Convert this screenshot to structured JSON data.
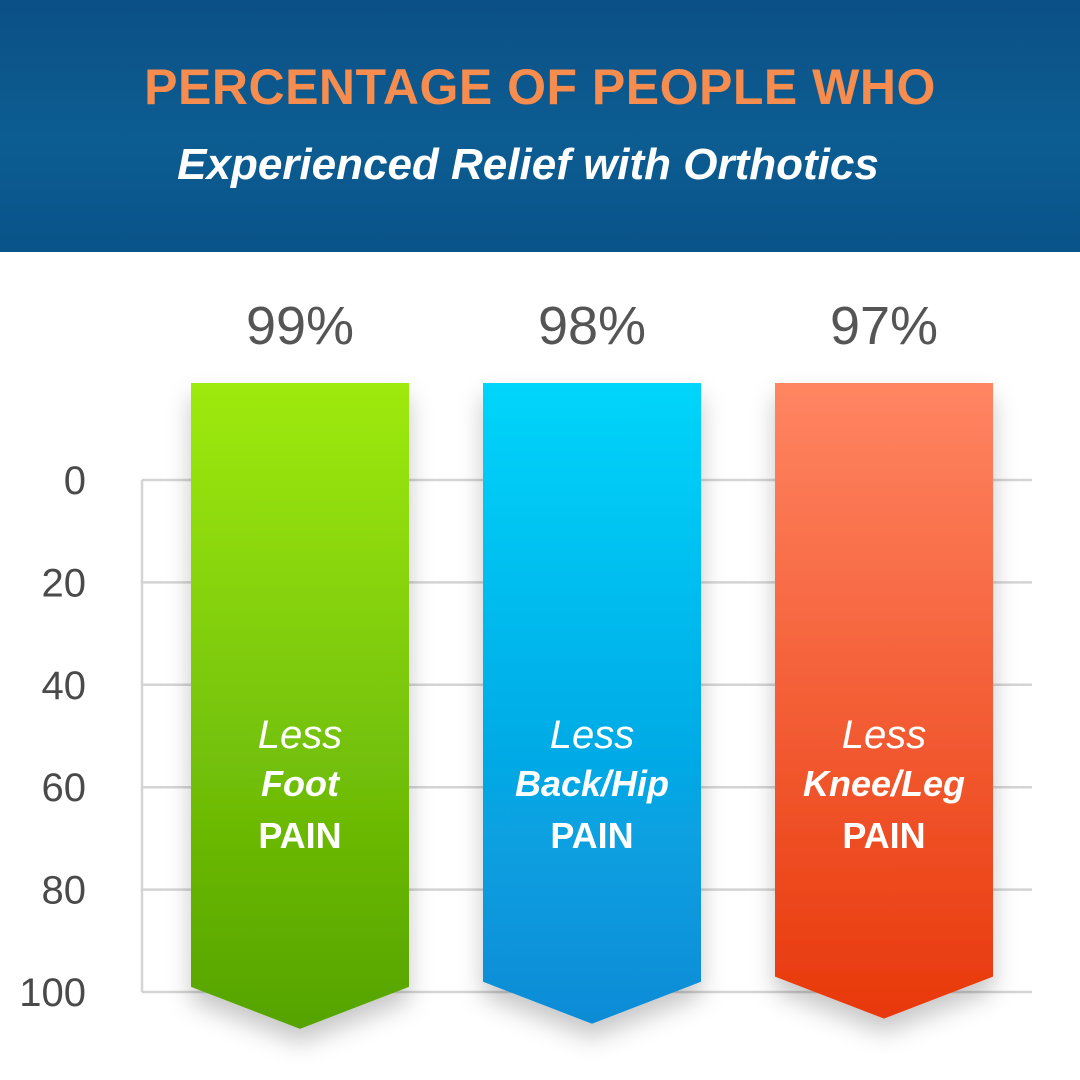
{
  "header": {
    "title": "PERCENTAGE OF PEOPLE WHO",
    "subtitle": "Experienced Relief with Orthotics"
  },
  "chart_data": {
    "type": "bar",
    "categories": [
      "Less Foot PAIN",
      "Less Back/Hip PAIN",
      "Less Knee/Leg PAIN"
    ],
    "values": [
      99,
      98,
      97
    ],
    "value_labels": [
      "99%",
      "98%",
      "97%"
    ],
    "bar_labels": [
      [
        "Less",
        "Foot",
        "PAIN"
      ],
      [
        "Less",
        "Back/Hip",
        "PAIN"
      ],
      [
        "Less",
        "Knee/Leg",
        "PAIN"
      ]
    ],
    "y_ticks": [
      "0",
      "20",
      "40",
      "60",
      "80",
      "100"
    ],
    "ylim": [
      0,
      100
    ],
    "y_axis_inverted": true,
    "grid": true,
    "colors": [
      {
        "top": "#9eea10",
        "bottom": "#55a301"
      },
      {
        "top": "#00d5fb",
        "bottom": "#0a8bd6"
      },
      {
        "top": "#ff8562",
        "bottom": "#e8380b"
      }
    ],
    "grid_color": "#d4d4d4",
    "tick_color": "#4a4a4a",
    "value_label_color": "#555555",
    "title": "PERCENTAGE OF PEOPLE WHO",
    "subtitle": "Experienced Relief with Orthotics"
  }
}
